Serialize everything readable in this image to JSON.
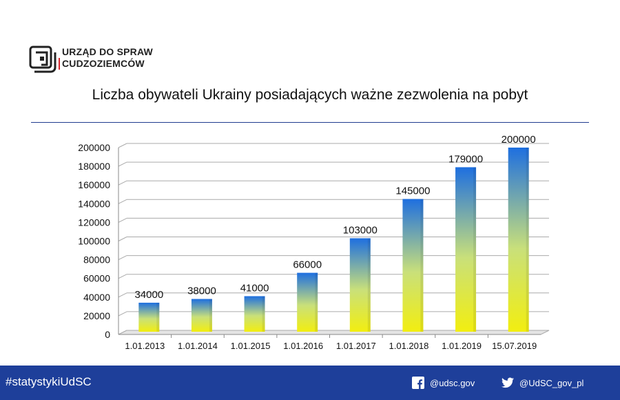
{
  "header": {
    "logo_line1": "URZĄD DO SPRAW",
    "logo_line2": "CUDZOZIEMCÓW",
    "title": "Liczba obywateli Ukrainy posiadających ważne zezwolenia na pobyt"
  },
  "chart_data": {
    "type": "bar",
    "title": "Liczba obywateli Ukrainy posiadających ważne zezwolenia na pobyt",
    "categories": [
      "1.01.2013",
      "1.01.2014",
      "1.01.2015",
      "1.01.2016",
      "1.01.2017",
      "1.01.2018",
      "1.01.2019",
      "15.07.2019"
    ],
    "values": [
      34000,
      38000,
      41000,
      66000,
      103000,
      145000,
      179000,
      200000
    ],
    "ylim": [
      0,
      200000
    ],
    "yticks": [
      0,
      20000,
      40000,
      60000,
      80000,
      100000,
      120000,
      140000,
      160000,
      180000,
      200000
    ],
    "grid": true,
    "data_labels": true,
    "bar_gradient": [
      "#1e6fe0",
      "#f2ee10"
    ]
  },
  "footer": {
    "hashtag": "#statystykiUdSC",
    "facebook": "@udsc.gov",
    "twitter": "@UdSC_gov_pl",
    "background": "#1e3f9a"
  }
}
